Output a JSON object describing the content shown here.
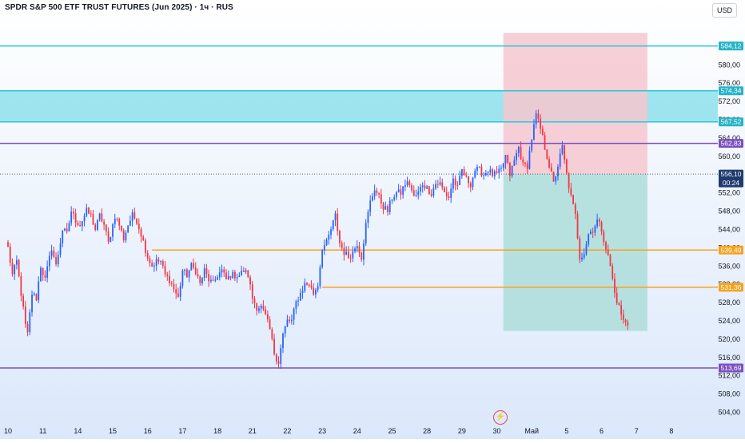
{
  "header": {
    "title": "SPDR S&P 500 ETF TRUST FUTURES (Jun 2025) · 1ч · RUS",
    "currency_button": "USD",
    "logo_glyph": "⚡"
  },
  "chart_data": {
    "type": "candlestick",
    "title": "SPDR S&P 500 ETF TRUST FUTURES (Jun 2025) · 1ч · RUS",
    "ylim": [
      502,
      590
    ],
    "y_ticks": [
      504,
      508,
      512,
      516,
      520,
      524,
      528,
      532,
      536,
      540,
      544,
      548,
      552,
      556,
      560,
      564,
      568,
      572,
      576,
      580
    ],
    "y_tick_labels": [
      "504,00",
      "508,00",
      "512,00",
      "516,00",
      "520,00",
      "524,00",
      "528,00",
      "532,00",
      "536,00",
      "540,00",
      "544,00",
      "548,00",
      "552,00",
      "556,00",
      "560,00",
      "564,00",
      "568,00",
      "572,00",
      "576,00",
      "580,00"
    ],
    "x_ticks": [
      {
        "label": "10",
        "bar": 0
      },
      {
        "label": "11",
        "bar": 16
      },
      {
        "label": "14",
        "bar": 32
      },
      {
        "label": "15",
        "bar": 48
      },
      {
        "label": "16",
        "bar": 64
      },
      {
        "label": "17",
        "bar": 80
      },
      {
        "label": "18",
        "bar": 96
      },
      {
        "label": "21",
        "bar": 112
      },
      {
        "label": "22",
        "bar": 128
      },
      {
        "label": "23",
        "bar": 144
      },
      {
        "label": "24",
        "bar": 160
      },
      {
        "label": "25",
        "bar": 176
      },
      {
        "label": "28",
        "bar": 192
      },
      {
        "label": "29",
        "bar": 208
      },
      {
        "label": "30",
        "bar": 224
      },
      {
        "label": "Май",
        "bar": 240
      },
      {
        "label": "5",
        "bar": 256
      },
      {
        "label": "6",
        "bar": 272
      },
      {
        "label": "7",
        "bar": 288
      },
      {
        "label": "8",
        "bar": 304
      }
    ],
    "colors": {
      "up": "#2962ff",
      "down": "#f23645",
      "cyan_line": "#26c6da",
      "purple_line": "#7b4fc0",
      "orange_line": "#f7a21b",
      "zone_fill": "#8ee0ec",
      "stop_fill": "#f6c7cf",
      "target_fill": "#a9dcd7"
    },
    "levels": [
      {
        "price": 584.12,
        "label": "584,12",
        "color": "#26c6da",
        "from_bar": 0
      },
      {
        "price": 574.34,
        "label": "574,34",
        "color": "#26c6da",
        "from_bar": 0
      },
      {
        "price": 567.52,
        "label": "567,52",
        "color": "#26c6da",
        "from_bar": 0
      },
      {
        "price": 562.83,
        "label": "562,83",
        "color": "#7b4fc0",
        "from_bar": 0
      },
      {
        "price": 539.49,
        "label": "539,49",
        "color": "#f7a21b",
        "from_bar": 66
      },
      {
        "price": 531.36,
        "label": "531,36",
        "color": "#f7a21b",
        "from_bar": 144
      },
      {
        "price": 513.69,
        "label": "513,69",
        "color": "#7b4fc0",
        "from_bar": 0
      }
    ],
    "zone": {
      "low": 567.52,
      "high": 574.34
    },
    "last_price": {
      "price": 556.1,
      "label": "556,10",
      "countdown": "00:24"
    },
    "position": {
      "from_bar": 227,
      "to_bar": 293,
      "entry": 556.1,
      "stop": 587.0,
      "target": 521.8
    },
    "anchors": [
      [
        0,
        540
      ],
      [
        2,
        534
      ],
      [
        4,
        537
      ],
      [
        6,
        530
      ],
      [
        8,
        523
      ],
      [
        9,
        521
      ],
      [
        11,
        530
      ],
      [
        13,
        529
      ],
      [
        15,
        536
      ],
      [
        17,
        533
      ],
      [
        20,
        540
      ],
      [
        22,
        536
      ],
      [
        25,
        544
      ],
      [
        27,
        543
      ],
      [
        29,
        548
      ],
      [
        31,
        546
      ],
      [
        33,
        545
      ],
      [
        36,
        548
      ],
      [
        38,
        547
      ],
      [
        40,
        544
      ],
      [
        42,
        547
      ],
      [
        44,
        545
      ],
      [
        46,
        541
      ],
      [
        49,
        547
      ],
      [
        51,
        545
      ],
      [
        53,
        542
      ],
      [
        55,
        545
      ],
      [
        57,
        547
      ],
      [
        59,
        546
      ],
      [
        61,
        543
      ],
      [
        64,
        538
      ],
      [
        66,
        536
      ],
      [
        68,
        537
      ],
      [
        70,
        537
      ],
      [
        72,
        534
      ],
      [
        74,
        533
      ],
      [
        76,
        531
      ],
      [
        78,
        529
      ],
      [
        80,
        535
      ],
      [
        82,
        534
      ],
      [
        84,
        536
      ],
      [
        86,
        535
      ],
      [
        88,
        532
      ],
      [
        90,
        535
      ],
      [
        92,
        533
      ],
      [
        94,
        532
      ],
      [
        96,
        534
      ],
      [
        98,
        535
      ],
      [
        100,
        533
      ],
      [
        102,
        534
      ],
      [
        104,
        534
      ],
      [
        106,
        534
      ],
      [
        108,
        535
      ],
      [
        110,
        534
      ],
      [
        112,
        529
      ],
      [
        114,
        527
      ],
      [
        116,
        527
      ],
      [
        118,
        525
      ],
      [
        120,
        522
      ],
      [
        122,
        517
      ],
      [
        124,
        515
      ],
      [
        126,
        521
      ],
      [
        128,
        524
      ],
      [
        130,
        524
      ],
      [
        132,
        528
      ],
      [
        134,
        530
      ],
      [
        136,
        532
      ],
      [
        138,
        532
      ],
      [
        140,
        530
      ],
      [
        142,
        532
      ],
      [
        144,
        540
      ],
      [
        146,
        541
      ],
      [
        148,
        544
      ],
      [
        150,
        547
      ],
      [
        152,
        541
      ],
      [
        154,
        539
      ],
      [
        156,
        538
      ],
      [
        158,
        539
      ],
      [
        160,
        541
      ],
      [
        162,
        538
      ],
      [
        164,
        545
      ],
      [
        166,
        550
      ],
      [
        168,
        553
      ],
      [
        170,
        551
      ],
      [
        172,
        549
      ],
      [
        174,
        548
      ],
      [
        176,
        551
      ],
      [
        178,
        552
      ],
      [
        180,
        552
      ],
      [
        182,
        554
      ],
      [
        184,
        554
      ],
      [
        186,
        551
      ],
      [
        188,
        552
      ],
      [
        190,
        554
      ],
      [
        192,
        553
      ],
      [
        194,
        552
      ],
      [
        196,
        554
      ],
      [
        198,
        554
      ],
      [
        200,
        552
      ],
      [
        202,
        551
      ],
      [
        204,
        555
      ],
      [
        206,
        553
      ],
      [
        208,
        557
      ],
      [
        210,
        555
      ],
      [
        212,
        554
      ],
      [
        214,
        557
      ],
      [
        216,
        557
      ],
      [
        218,
        556
      ],
      [
        220,
        557
      ],
      [
        222,
        556
      ],
      [
        224,
        556
      ],
      [
        226,
        557
      ],
      [
        228,
        560
      ],
      [
        230,
        556
      ],
      [
        232,
        559
      ],
      [
        234,
        562
      ],
      [
        236,
        558
      ],
      [
        238,
        558
      ],
      [
        240,
        564
      ],
      [
        242,
        569
      ],
      [
        244,
        566
      ],
      [
        246,
        562
      ],
      [
        248,
        558
      ],
      [
        250,
        554
      ],
      [
        252,
        558
      ],
      [
        254,
        562
      ],
      [
        256,
        556
      ],
      [
        258,
        551
      ],
      [
        260,
        547
      ],
      [
        262,
        538
      ],
      [
        264,
        539
      ],
      [
        266,
        543
      ],
      [
        268,
        544
      ],
      [
        270,
        546
      ],
      [
        272,
        544
      ],
      [
        274,
        540
      ],
      [
        276,
        536
      ],
      [
        278,
        530
      ],
      [
        280,
        527
      ],
      [
        282,
        524
      ],
      [
        284,
        523
      ]
    ]
  }
}
